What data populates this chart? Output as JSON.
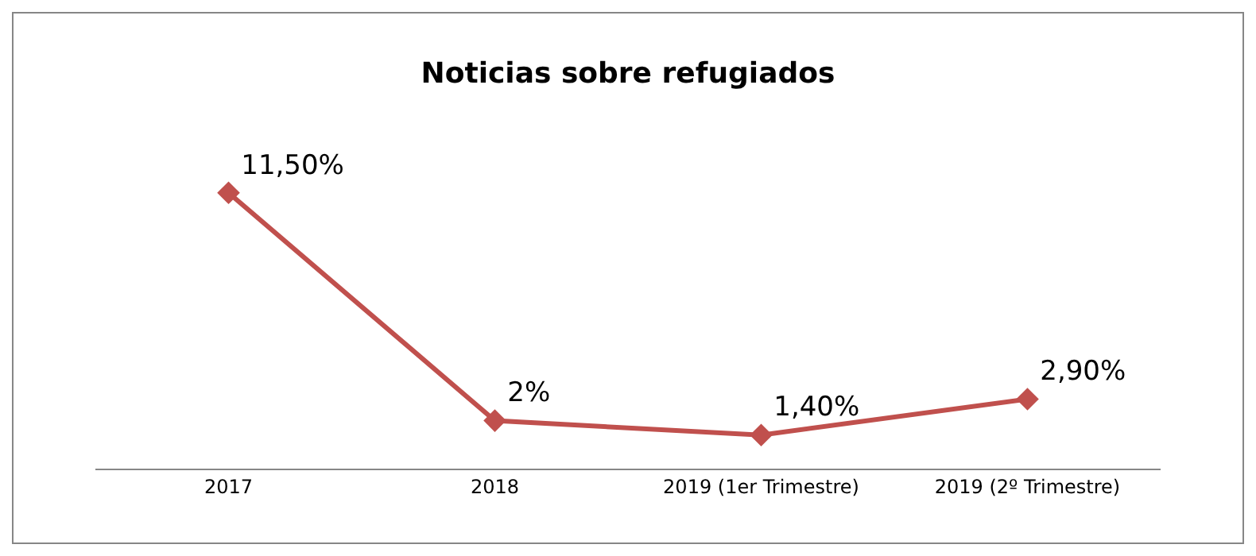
{
  "chart_data": {
    "type": "line",
    "title": "Noticias sobre refugiados",
    "categories": [
      "2017",
      "2018",
      "2019 (1er Trimestre)",
      "2019 (2º Trimestre)"
    ],
    "values": [
      11.5,
      2,
      1.4,
      2.9
    ],
    "value_labels": [
      "11,50%",
      "2%",
      "1,40%",
      "2,90%"
    ],
    "color": "#c0504d",
    "marker": "diamond",
    "line_style": "solid",
    "tick_labels": "x"
  }
}
